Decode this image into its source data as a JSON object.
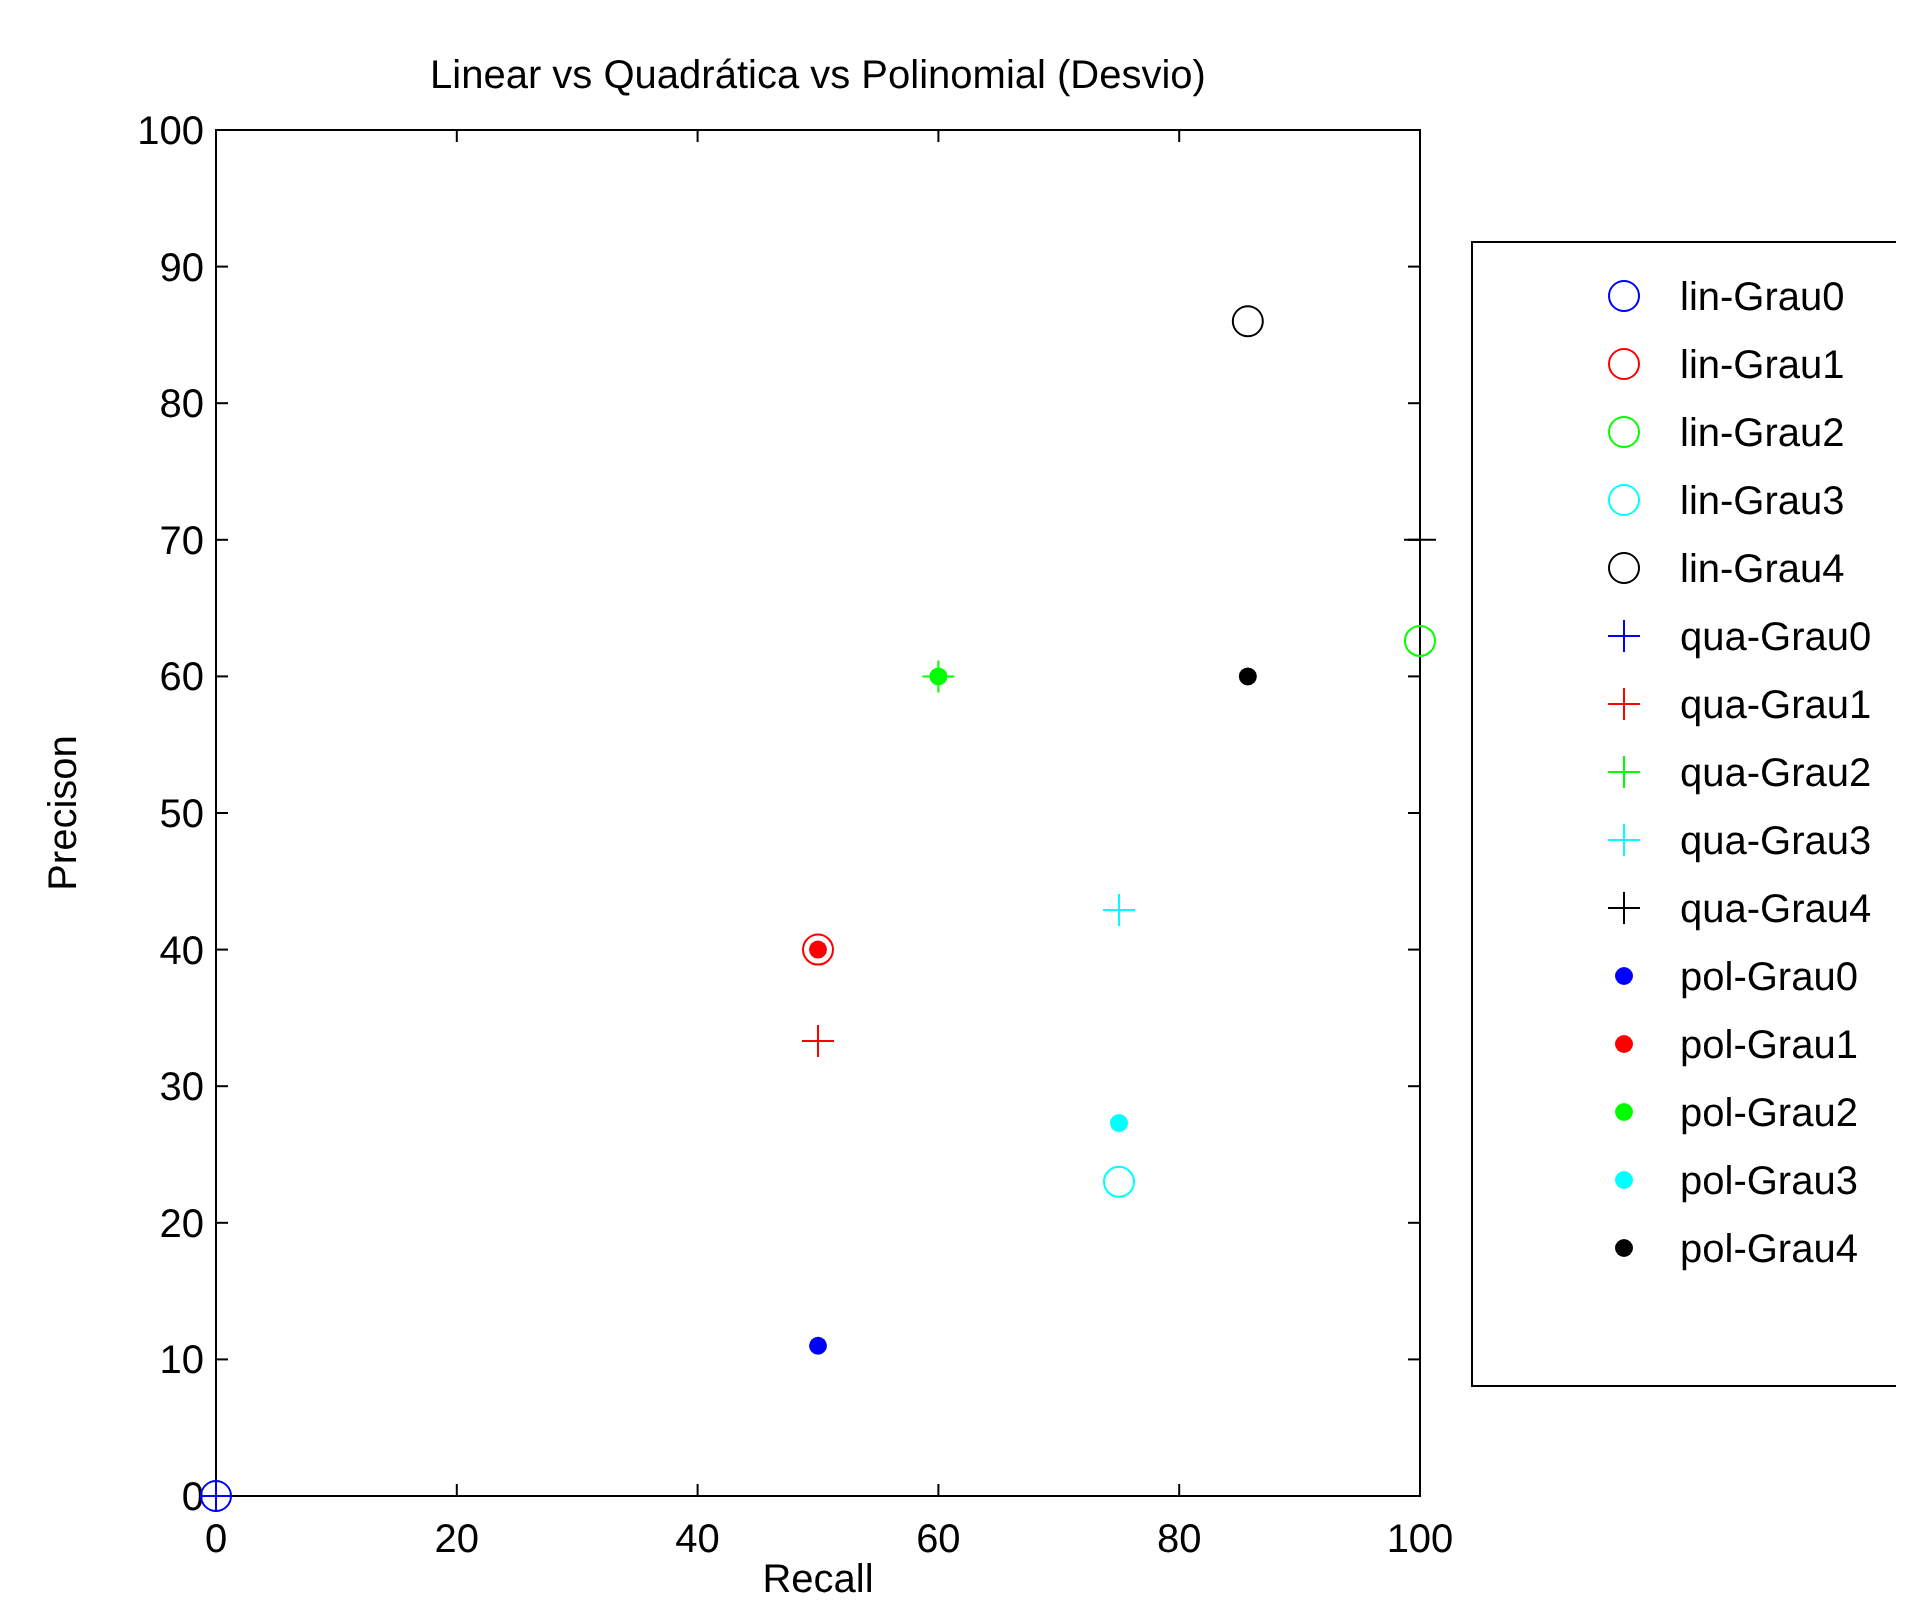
{
  "chart_data": {
    "type": "scatter",
    "title": "Linear vs Quadrática vs Polinomial (Desvio)",
    "xlabel": "Recall",
    "ylabel": "Precison",
    "xlim": [
      0,
      100
    ],
    "xticks": [
      0,
      20,
      40,
      60,
      80,
      100
    ],
    "ylim": [
      0,
      100
    ],
    "yticks": [
      0,
      10,
      20,
      30,
      40,
      50,
      60,
      70,
      80,
      90,
      100
    ],
    "grid": false,
    "legend": "right",
    "series": [
      {
        "name": "lin-Grau0",
        "color": "#0000ff",
        "marker": "circle",
        "x": [
          0
        ],
        "values": [
          0
        ]
      },
      {
        "name": "lin-Grau1",
        "color": "#ff0000",
        "marker": "circle",
        "x": [
          50
        ],
        "values": [
          40
        ]
      },
      {
        "name": "lin-Grau2",
        "color": "#00ff00",
        "marker": "circle",
        "x": [
          100
        ],
        "values": [
          62.6
        ]
      },
      {
        "name": "lin-Grau3",
        "color": "#00ffff",
        "marker": "circle",
        "x": [
          75
        ],
        "values": [
          23
        ]
      },
      {
        "name": "lin-Grau4",
        "color": "#000000",
        "marker": "circle",
        "x": [
          85.7
        ],
        "values": [
          86
        ]
      },
      {
        "name": "qua-Grau0",
        "color": "#0000ff",
        "marker": "cross",
        "x": [
          0
        ],
        "values": [
          0
        ]
      },
      {
        "name": "qua-Grau1",
        "color": "#ff0000",
        "marker": "cross",
        "x": [
          50
        ],
        "values": [
          33.3
        ]
      },
      {
        "name": "qua-Grau2",
        "color": "#00ff00",
        "marker": "cross",
        "x": [
          60
        ],
        "values": [
          60
        ]
      },
      {
        "name": "qua-Grau3",
        "color": "#00ffff",
        "marker": "cross",
        "x": [
          75
        ],
        "values": [
          42.9
        ]
      },
      {
        "name": "qua-Grau4",
        "color": "#000000",
        "marker": "cross",
        "x": [
          100
        ],
        "values": [
          70
        ]
      },
      {
        "name": "pol-Grau0",
        "color": "#0000ff",
        "marker": "point",
        "x": [
          50
        ],
        "values": [
          11
        ]
      },
      {
        "name": "pol-Grau1",
        "color": "#ff0000",
        "marker": "point",
        "x": [
          50
        ],
        "values": [
          40
        ]
      },
      {
        "name": "pol-Grau2",
        "color": "#00ff00",
        "marker": "point",
        "x": [
          60
        ],
        "values": [
          60
        ]
      },
      {
        "name": "pol-Grau3",
        "color": "#00ffff",
        "marker": "point",
        "x": [
          75
        ],
        "values": [
          27.3
        ]
      },
      {
        "name": "pol-Grau4",
        "color": "#000000",
        "marker": "point",
        "x": [
          85.7
        ],
        "values": [
          60
        ]
      }
    ]
  }
}
